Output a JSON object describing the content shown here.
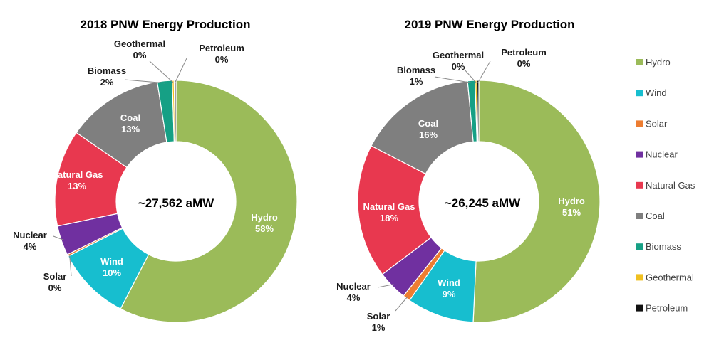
{
  "chart_data": [
    {
      "type": "pie",
      "title": "2018 PNW Energy Production",
      "center_label": "~27,562 aMW",
      "categories": [
        "Hydro",
        "Wind",
        "Solar",
        "Nuclear",
        "Natural Gas",
        "Coal",
        "Biomass",
        "Geothermal",
        "Petroleum"
      ],
      "values": [
        58,
        10,
        0,
        4,
        13,
        13,
        2,
        0,
        0
      ],
      "value_labels": [
        "58%",
        "10%",
        "0%",
        "4%",
        "13%",
        "13%",
        "2%",
        "0%",
        "0%"
      ]
    },
    {
      "type": "pie",
      "title": "2019 PNW Energy Production",
      "center_label": "~26,245 aMW",
      "categories": [
        "Hydro",
        "Wind",
        "Solar",
        "Nuclear",
        "Natural Gas",
        "Coal",
        "Biomass",
        "Geothermal",
        "Petroleum"
      ],
      "values": [
        51,
        9,
        1,
        4,
        18,
        16,
        1,
        0,
        0
      ],
      "value_labels": [
        "51%",
        "9%",
        "1%",
        "4%",
        "18%",
        "16%",
        "1%",
        "0%",
        "0%"
      ]
    }
  ],
  "legend": {
    "position": "right",
    "items": [
      "Hydro",
      "Wind",
      "Solar",
      "Nuclear",
      "Natural Gas",
      "Coal",
      "Biomass",
      "Geothermal",
      "Petroleum"
    ]
  },
  "colors": [
    "#9bbb59",
    "#17becf",
    "#ed7d31",
    "#7030a0",
    "#e8384f",
    "#7f7f7f",
    "#16a085",
    "#f0c020",
    "#111111"
  ]
}
